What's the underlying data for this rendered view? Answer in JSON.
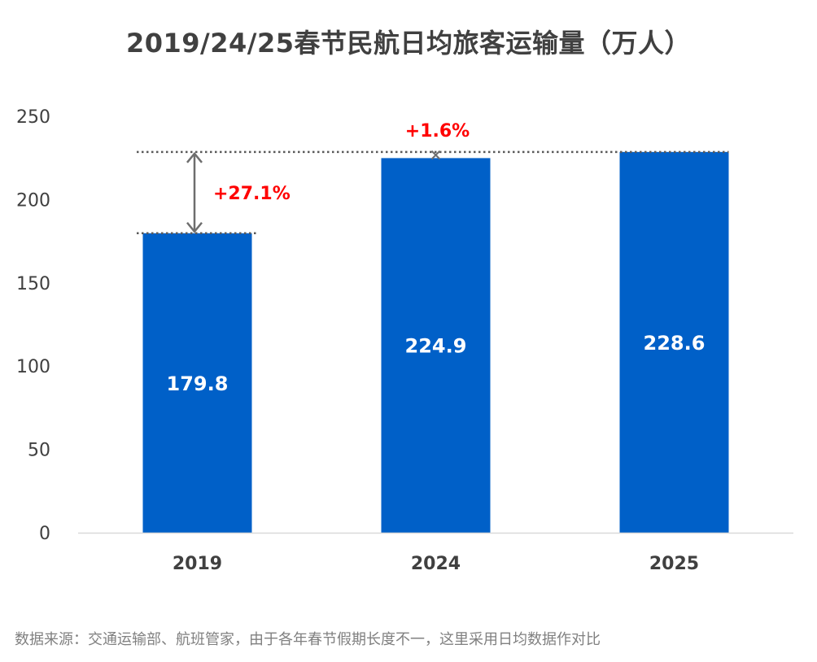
{
  "chart_data": {
    "type": "bar",
    "title": "2019/24/25春节民航日均旅客运输量（万人）",
    "categories": [
      "2019",
      "2024",
      "2025"
    ],
    "values": [
      179.8,
      224.9,
      228.6
    ],
    "value_labels": [
      "179.8",
      "224.9",
      "228.6"
    ],
    "ylim": [
      0,
      250
    ],
    "yticks": [
      0,
      50,
      100,
      150,
      200,
      250
    ],
    "grid": false,
    "legend": "none",
    "colors": {
      "bar": "#0060C8",
      "annotation": "#FF0000",
      "axis_text": "#404040",
      "guide_line": "#595959"
    },
    "annotations": [
      {
        "text": "+27.1%",
        "from_value": 179.8,
        "to_value": 228.6,
        "near_category": "2019",
        "marker": "double-arrow"
      },
      {
        "text": "+1.6%",
        "from_value": 224.9,
        "to_value": 228.6,
        "near_category": "2024",
        "marker": "x"
      }
    ]
  },
  "footnote": "数据来源：交通运输部、航班管家，由于各年春节假期长度不一，这里采用日均数据作对比"
}
